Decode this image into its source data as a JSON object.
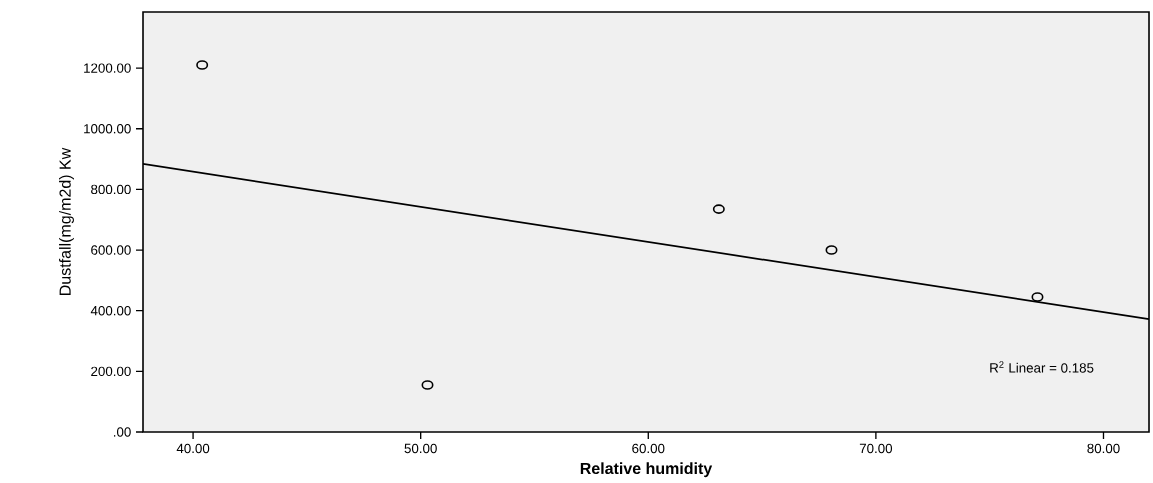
{
  "chart_data": {
    "type": "scatter",
    "xlabel": "Relative humidity",
    "ylabel": "Dustfall(mg/m2d) Kw",
    "x": [
      40.4,
      50.3,
      63.1,
      68.05,
      77.1
    ],
    "values": [
      1210,
      155,
      735,
      600,
      445
    ],
    "color": "#000000",
    "marker": "circle",
    "series": [
      {
        "name": null,
        "type": "line",
        "marker": "none",
        "color": "#000000",
        "x": [
          37.8,
          82.0
        ],
        "values": [
          884,
          372
        ]
      }
    ],
    "annotations": [
      "R$^{2}$ Linear = 0.185"
    ],
    "xlim": [
      37.8,
      82.0
    ],
    "ylim": [
      0,
      1385
    ],
    "xticks": [
      {
        "value": 40,
        "label": "40.00"
      },
      {
        "value": 50,
        "label": "50.00"
      },
      {
        "value": 60,
        "label": "60.00"
      },
      {
        "value": 70,
        "label": "70.00"
      },
      {
        "value": 80,
        "label": "80.00"
      }
    ],
    "yticks": [
      {
        "value": 0,
        "label": ".00"
      },
      {
        "value": 200,
        "label": "200.00"
      },
      {
        "value": 400,
        "label": "400.00"
      },
      {
        "value": 600,
        "label": "600.00"
      },
      {
        "value": 800,
        "label": "800.00"
      },
      {
        "value": 1000,
        "label": "1000.00"
      },
      {
        "value": 1200,
        "label": "1200.00"
      }
    ],
    "grid": false
  }
}
